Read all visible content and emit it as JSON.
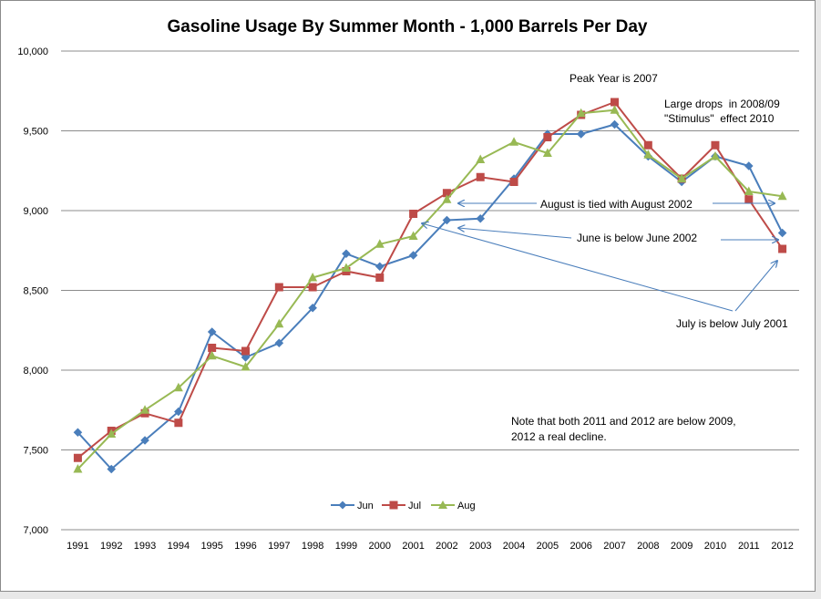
{
  "chart_data": {
    "type": "line",
    "title": "Gasoline Usage By Summer Month - 1,000 Barrels Per Day",
    "xlabel": "",
    "ylabel": "",
    "ylim": [
      7000,
      10000
    ],
    "y_ticks": [
      "7,000",
      "7,500",
      "8,000",
      "8,500",
      "9,000",
      "9,500",
      "10,000"
    ],
    "y_tick_values": [
      7000,
      7500,
      8000,
      8500,
      9000,
      9500,
      10000
    ],
    "categories": [
      "1991",
      "1992",
      "1993",
      "1994",
      "1995",
      "1996",
      "1997",
      "1998",
      "1999",
      "2000",
      "2001",
      "2002",
      "2003",
      "2004",
      "2005",
      "2006",
      "2007",
      "2008",
      "2009",
      "2010",
      "2011",
      "2012"
    ],
    "grid": true,
    "legend_position": "bottom",
    "series": [
      {
        "name": "Jun",
        "color": "#4a7ebb",
        "marker": "diamond",
        "values": [
          7610,
          7380,
          7560,
          7740,
          8240,
          8080,
          8170,
          8390,
          8730,
          8650,
          8720,
          8940,
          8950,
          9200,
          9480,
          9480,
          9540,
          9340,
          9180,
          9340,
          9280,
          8860
        ]
      },
      {
        "name": "Jul",
        "color": "#be4b48",
        "marker": "square",
        "values": [
          7450,
          7620,
          7730,
          7670,
          8140,
          8120,
          8520,
          8520,
          8620,
          8580,
          8980,
          9110,
          9210,
          9180,
          9460,
          9600,
          9680,
          9410,
          9200,
          9410,
          9070,
          8760
        ]
      },
      {
        "name": "Aug",
        "color": "#98b954",
        "marker": "triangle",
        "values": [
          7380,
          7600,
          7750,
          7890,
          8090,
          8020,
          8290,
          8580,
          8640,
          8790,
          8840,
          9070,
          9320,
          9430,
          9360,
          9610,
          9630,
          9350,
          9200,
          9340,
          9120,
          9090
        ]
      }
    ],
    "annotations": [
      {
        "id": "peak",
        "text": "Peak Year is 2007"
      },
      {
        "id": "drops",
        "lines": [
          "Large drops  in 2008/09",
          "\"Stimulus\"  effect 2010"
        ]
      },
      {
        "id": "august",
        "text": "August is tied with August 2002"
      },
      {
        "id": "june",
        "text": "June is below June 2002"
      },
      {
        "id": "july",
        "text": "July is below July 2001"
      },
      {
        "id": "note",
        "lines": [
          "Note that both 2011 and 2012 are below 2009,",
          "2012 a real decline."
        ]
      }
    ]
  }
}
